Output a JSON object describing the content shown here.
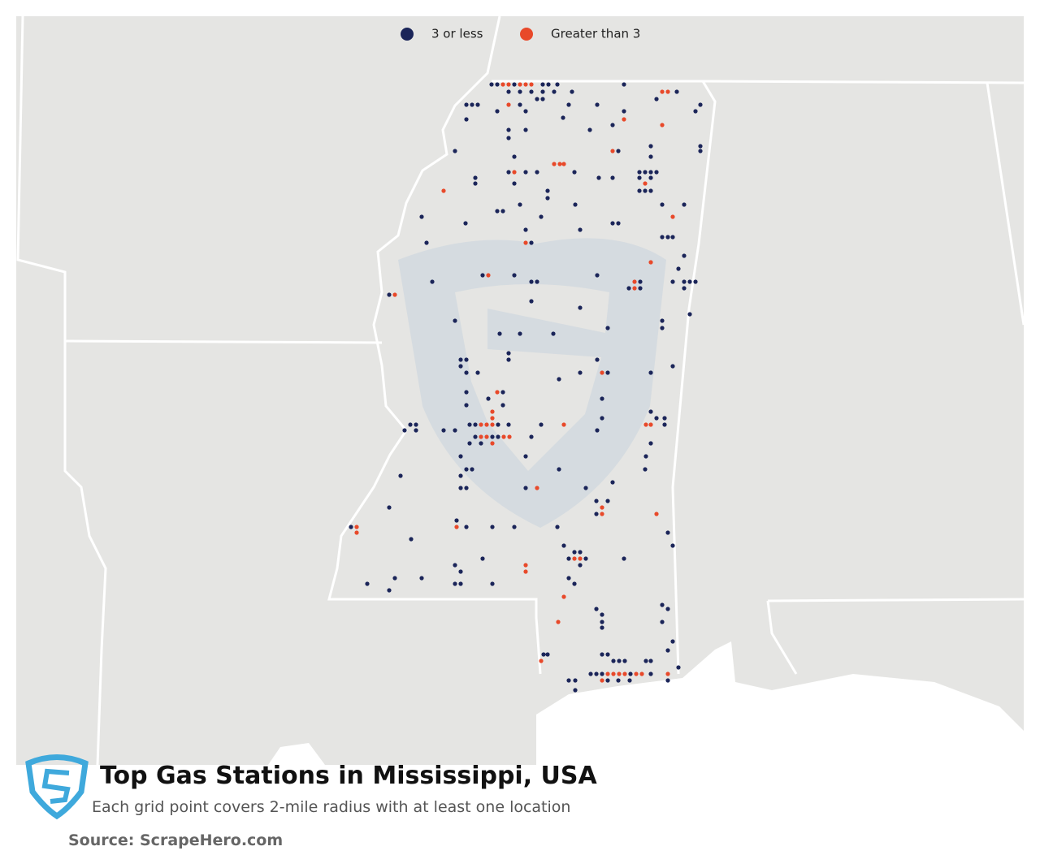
{
  "legend": [
    {
      "label": "3 or less",
      "color": "#1b2559"
    },
    {
      "label": "Greater than 3",
      "color": "#e8492a"
    }
  ],
  "title": "Top Gas Stations in Mississippi, USA",
  "subtitle": "Each grid point covers 2-mile radius with at least one location",
  "source": "Source: ScrapeHero.com"
}
